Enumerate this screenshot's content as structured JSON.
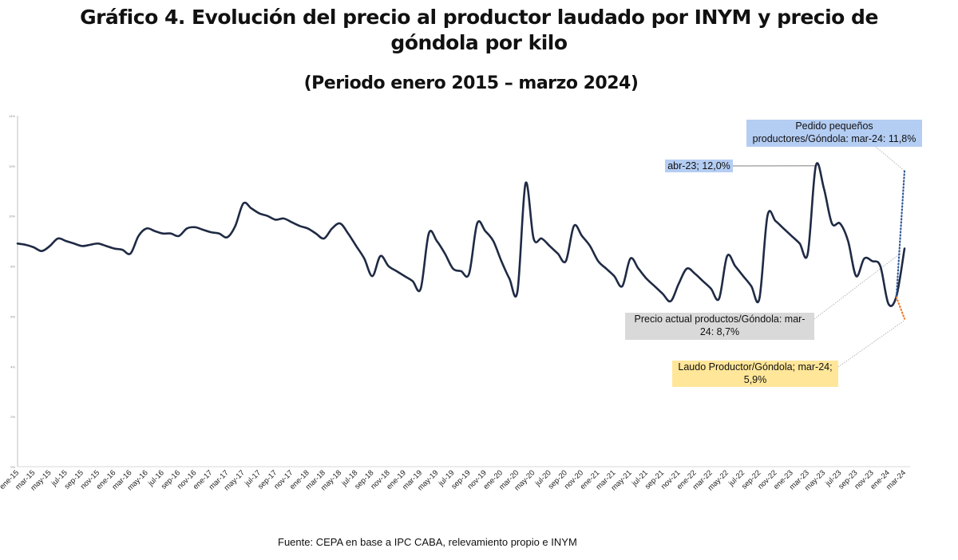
{
  "title": "Gráfico 4. Evolución del precio al productor laudado por INYM y precio de góndola por kilo",
  "subtitle": "(Periodo enero 2015 – marzo 2024)",
  "source": "Fuente: CEPA en base a IPC CABA, relevamiento propio e INYM",
  "chart_data": {
    "type": "line",
    "ylim": [
      0,
      14
    ],
    "y_ticks": [
      "0%",
      "2%",
      "4%",
      "6%",
      "8%",
      "10%",
      "12%",
      "14%"
    ],
    "x_tick_labels": [
      "ene-15",
      "mar-15",
      "may-15",
      "jul-15",
      "sep-15",
      "nov-15",
      "ene-16",
      "mar-16",
      "may-16",
      "jul-16",
      "sep-16",
      "nov-16",
      "ene-17",
      "mar-17",
      "may-17",
      "jul-17",
      "sep-17",
      "nov-17",
      "ene-18",
      "mar-18",
      "may-18",
      "jul-18",
      "sep-18",
      "nov-18",
      "ene-19",
      "mar-19",
      "may-19",
      "jul-19",
      "sep-19",
      "nov-19",
      "ene-20",
      "mar-20",
      "may-20",
      "jul-20",
      "sep-20",
      "nov-20",
      "ene-21",
      "mar-21",
      "may-21",
      "jul-21",
      "sep-21",
      "nov-21",
      "ene-22",
      "mar-22",
      "may-22",
      "jul-22",
      "sep-22",
      "nov-22",
      "ene-23",
      "mar-23",
      "may-23",
      "jul-23",
      "sep-23",
      "nov-23",
      "ene-24",
      "mar-24"
    ],
    "grid": false,
    "series": [
      {
        "color": "#1f2a44",
        "style": "solid",
        "x_range": [
          "ene-15",
          "mar-24"
        ],
        "frequency": "monthly",
        "values": [
          8.9,
          8.85,
          8.75,
          8.6,
          8.8,
          9.1,
          9.0,
          8.9,
          8.8,
          8.85,
          8.9,
          8.8,
          8.7,
          8.65,
          8.5,
          9.2,
          9.5,
          9.4,
          9.3,
          9.3,
          9.2,
          9.5,
          9.55,
          9.45,
          9.35,
          9.3,
          9.15,
          9.6,
          10.5,
          10.3,
          10.1,
          10.0,
          9.85,
          9.9,
          9.75,
          9.6,
          9.5,
          9.3,
          9.1,
          9.5,
          9.7,
          9.3,
          8.8,
          8.3,
          7.6,
          8.4,
          8.0,
          7.8,
          7.6,
          7.4,
          7.1,
          9.3,
          9.0,
          8.5,
          7.9,
          7.8,
          7.7,
          9.7,
          9.4,
          9.0,
          8.2,
          7.5,
          7.0,
          11.3,
          9.1,
          9.1,
          8.8,
          8.5,
          8.2,
          9.6,
          9.2,
          8.8,
          8.2,
          7.9,
          7.6,
          7.2,
          8.3,
          7.9,
          7.5,
          7.2,
          6.9,
          6.6,
          7.3,
          7.9,
          7.7,
          7.4,
          7.1,
          6.7,
          8.4,
          8.0,
          7.6,
          7.2,
          6.7,
          10.0,
          9.8,
          9.5,
          9.2,
          8.9,
          8.5,
          12.0,
          11.1,
          9.7,
          9.7,
          9.0,
          7.6,
          8.3,
          8.2,
          8.0,
          6.5,
          6.8,
          8.7
        ]
      },
      {
        "color": "#2f5597",
        "style": "dotted",
        "x": [
          "feb-24",
          "mar-24"
        ],
        "values": [
          6.8,
          11.8
        ]
      },
      {
        "color": "#ed7d31",
        "style": "dotted",
        "x": [
          "feb-24",
          "mar-24"
        ],
        "values": [
          6.75,
          5.9
        ]
      }
    ],
    "annotations": [
      {
        "text": "Pedido pequeños productores/Góndola: mar-24: 11,8%",
        "line1": "Pedido pequeños",
        "line2": "productores/Góndola: mar-24: 11,8%",
        "color": "#b4cdf3"
      },
      {
        "text": "abr-23; 12,0%",
        "color": "#b4cdf3"
      },
      {
        "text": "Precio actual productos/Góndola: mar-24: 8,7%",
        "line1": "Precio actual productos/Góndola: mar-",
        "line2": "24: 8,7%",
        "color": "#d9d9d9"
      },
      {
        "text": "Laudo Productor/Góndola; mar-24; 5,9%",
        "line1": "Laudo Productor/Góndola; mar-24;",
        "line2": "5,9%",
        "color": "#ffe699"
      }
    ]
  }
}
